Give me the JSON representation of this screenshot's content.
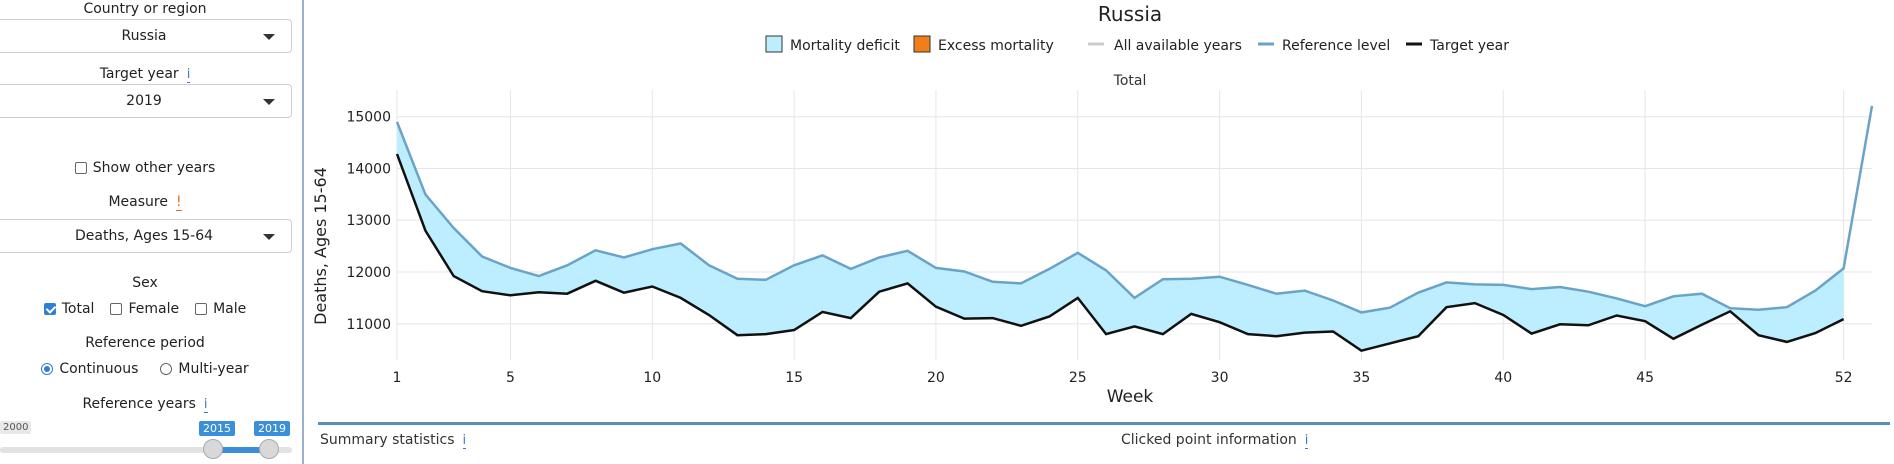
{
  "sidebar": {
    "country_label": "Country or region",
    "country_value": "Russia",
    "target_year_label": "Target year",
    "target_year_value": "2019",
    "show_other_years": "Show other years",
    "measure_label": "Measure",
    "measure_warn": "!",
    "measure_value": "Deaths, Ages 15-64",
    "sex_label": "Sex",
    "sex_total": "Total",
    "sex_female": "Female",
    "sex_male": "Male",
    "ref_period_label": "Reference period",
    "ref_continuous": "Continuous",
    "ref_multiyear": "Multi-year",
    "ref_years_label": "Reference years",
    "slider_min": "2000",
    "slider_from": "2015",
    "slider_to": "2019",
    "info_glyph": "i"
  },
  "bottom": {
    "summary": "Summary statistics",
    "clicked": "Clicked point information"
  },
  "colors": {
    "deficit_fill": "#bdeeff",
    "excess_fill": "#f07f1a",
    "reference_line": "#6aa3c8",
    "target_line": "#111111",
    "all_years_line": "#cccccc"
  },
  "chart_data": {
    "type": "area",
    "title": "Russia",
    "subtitle": "Total",
    "xlabel": "Week",
    "ylabel": "Deaths, Ages 15-64",
    "xlim": [
      1,
      53
    ],
    "ylim": [
      10300,
      15400
    ],
    "x_ticks": [
      1,
      5,
      10,
      15,
      20,
      25,
      30,
      35,
      40,
      45,
      52
    ],
    "y_ticks": [
      11000,
      12000,
      13000,
      14000,
      15000
    ],
    "grid": true,
    "legend_position": "top",
    "legend": [
      "Mortality deficit",
      "Excess mortality",
      "All available years",
      "Reference level",
      "Target year"
    ],
    "weeks": [
      1,
      2,
      3,
      4,
      5,
      6,
      7,
      8,
      9,
      10,
      11,
      12,
      13,
      14,
      15,
      16,
      17,
      18,
      19,
      20,
      21,
      22,
      23,
      24,
      25,
      26,
      27,
      28,
      29,
      30,
      31,
      32,
      33,
      34,
      35,
      36,
      37,
      38,
      39,
      40,
      41,
      42,
      43,
      44,
      45,
      46,
      47,
      48,
      49,
      50,
      51,
      52,
      53
    ],
    "reference": [
      14900,
      13500,
      12850,
      12300,
      12080,
      11920,
      12130,
      12420,
      12280,
      12440,
      12550,
      12130,
      11870,
      11850,
      12130,
      12320,
      12060,
      12280,
      12410,
      12080,
      12010,
      11810,
      11780,
      12060,
      12370,
      12030,
      11500,
      11860,
      11870,
      11910,
      11750,
      11580,
      11640,
      11450,
      11220,
      11310,
      11600,
      11800,
      11760,
      11750,
      11670,
      11710,
      11620,
      11490,
      11340,
      11530,
      11580,
      11300,
      11270,
      11320,
      11640,
      12070,
      15210
    ],
    "target": [
      14280,
      12800,
      11920,
      11630,
      11550,
      11610,
      11580,
      11830,
      11600,
      11720,
      11500,
      11170,
      10780,
      10800,
      10880,
      11230,
      11110,
      11620,
      11780,
      11330,
      11100,
      11110,
      10960,
      11140,
      11500,
      10800,
      10950,
      10800,
      11190,
      11030,
      10800,
      10760,
      10830,
      10850,
      10480,
      10620,
      10760,
      11320,
      11400,
      11170,
      10810,
      10990,
      10970,
      11160,
      11050,
      10710,
      10980,
      11240,
      10780,
      10650,
      10820,
      11090,
      null
    ],
    "series_names": {
      "reference": "Reference level",
      "target": "Target year"
    }
  }
}
